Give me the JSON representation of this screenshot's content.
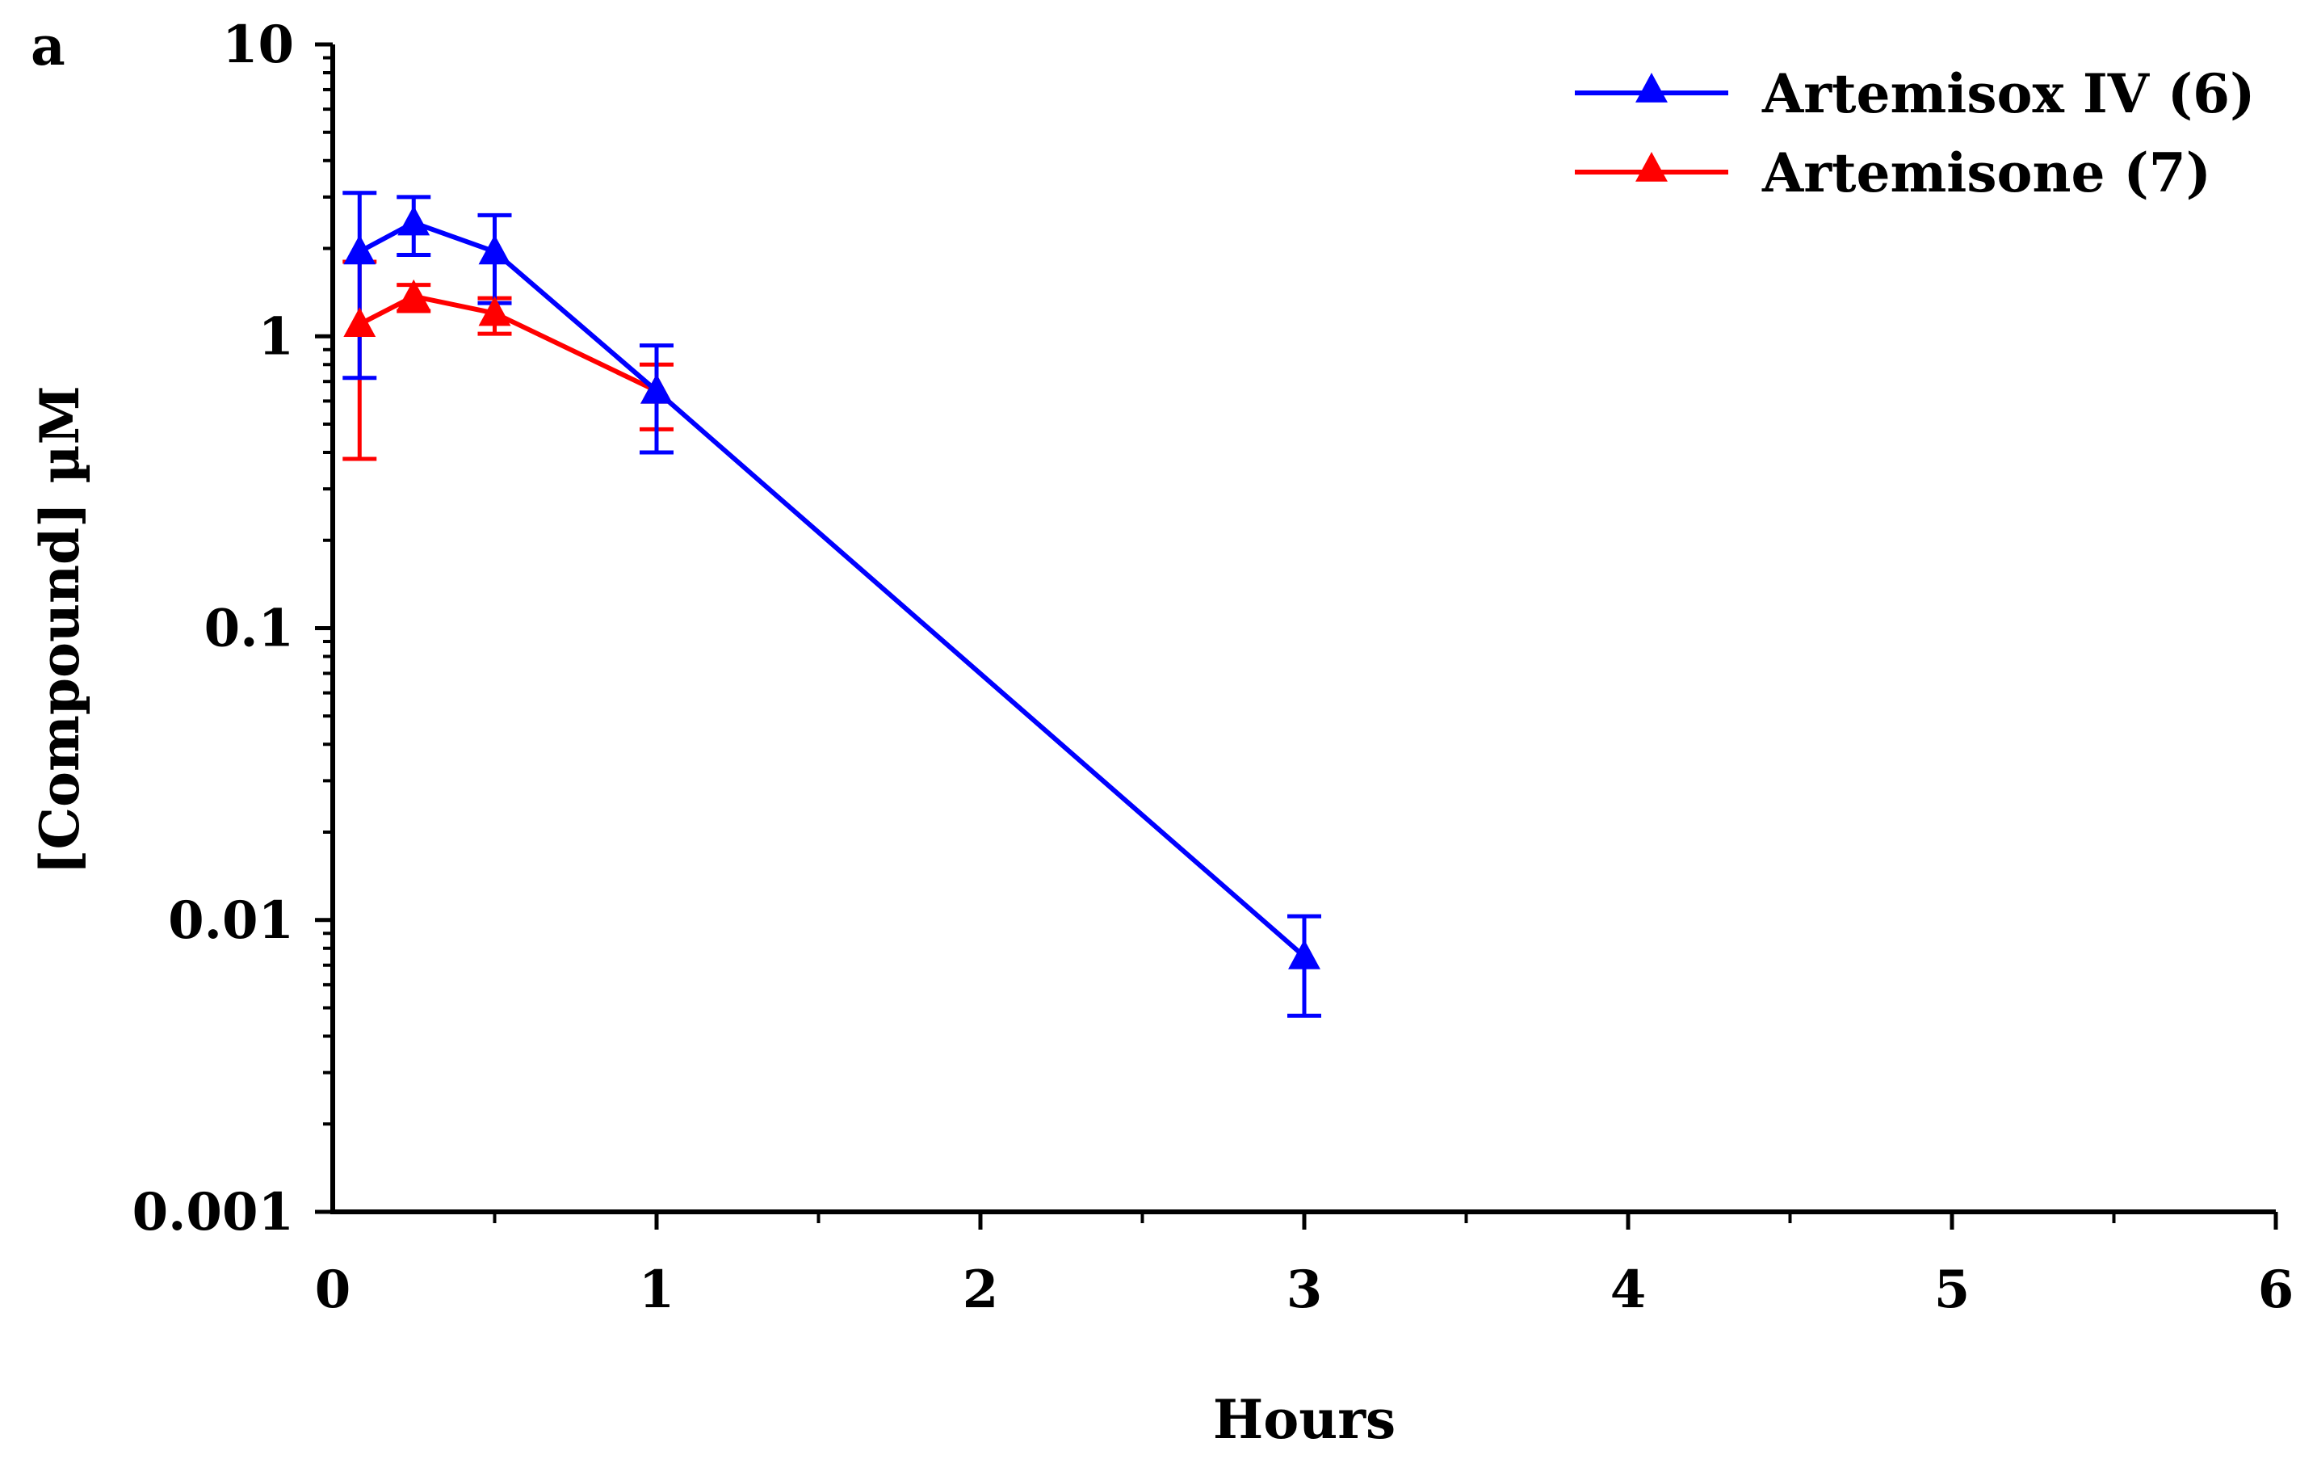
{
  "chart_data": {
    "type": "line",
    "panel_label": "a",
    "title": "",
    "xlabel": "Hours",
    "ylabel": "[Compound] µM",
    "xlim": [
      0,
      6
    ],
    "ylim": [
      0.001,
      10
    ],
    "yscale": "log",
    "grid": false,
    "legend_position": "top-right",
    "x_ticks": [
      0,
      1,
      2,
      3,
      4,
      5,
      6
    ],
    "x_tick_labels": [
      "0",
      "1",
      "2",
      "3",
      "4",
      "5",
      "6"
    ],
    "x_minor_ticks": [
      0.5,
      1.5,
      2.5,
      3.5,
      4.5,
      5.5
    ],
    "y_ticks": [
      0.001,
      0.01,
      0.1,
      1,
      10
    ],
    "y_tick_labels": [
      "0.001",
      "0.01",
      "0.1",
      "1",
      "10"
    ],
    "series": [
      {
        "name": "Artemisox IV (6)",
        "color": "#0000ff",
        "marker": "triangle",
        "x": [
          0.083,
          0.25,
          0.5,
          1,
          3
        ],
        "y": [
          1.95,
          2.45,
          1.95,
          0.65,
          0.0075
        ],
        "err_low": [
          0.72,
          1.9,
          1.3,
          0.4,
          0.0047
        ],
        "err_high": [
          3.1,
          3.0,
          2.6,
          0.93,
          0.0103
        ]
      },
      {
        "name": "Artemisone (7)",
        "color": "#ff0000",
        "marker": "triangle",
        "x": [
          0.083,
          0.25,
          0.5,
          1
        ],
        "y": [
          1.1,
          1.37,
          1.2,
          0.65
        ],
        "err_low": [
          0.38,
          1.22,
          1.02,
          0.48
        ],
        "err_high": [
          1.8,
          1.5,
          1.35,
          0.8
        ]
      }
    ]
  }
}
